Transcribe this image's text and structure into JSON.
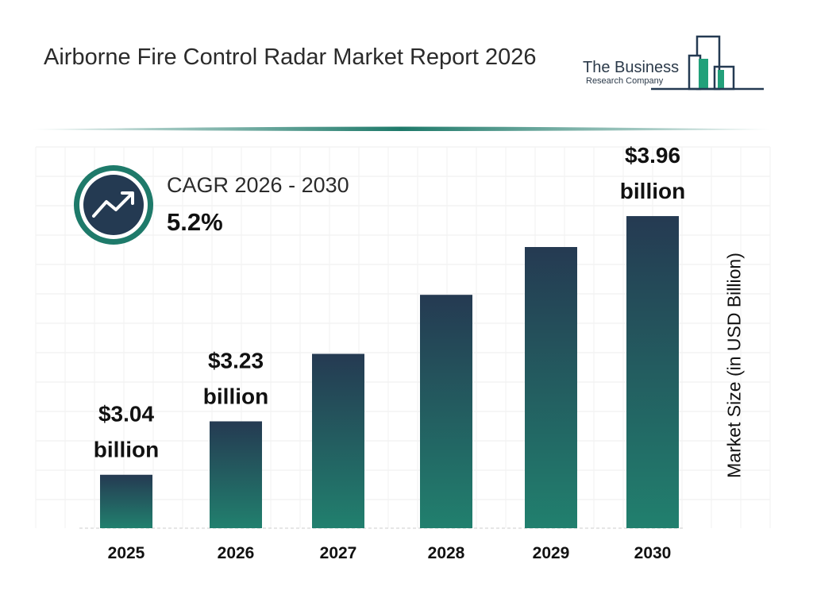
{
  "header": {
    "title": "Airborne Fire Control Radar Market Report 2026"
  },
  "logo": {
    "line1": "The Business",
    "line2": "Research Company"
  },
  "cagr": {
    "label": "CAGR 2026 - 2030",
    "value": "5.2%",
    "icon": "trending-up-icon"
  },
  "colors": {
    "bar_top": "#253a52",
    "bar_bottom": "#21806e",
    "ring": "#1e7a6a",
    "icon_bg": "#243a52"
  },
  "chart_data": {
    "type": "bar",
    "categories": [
      "2025",
      "2026",
      "2027",
      "2028",
      "2029",
      "2030"
    ],
    "values": [
      3.04,
      3.23,
      3.47,
      3.68,
      3.85,
      3.96
    ],
    "data_labels": [
      "$3.04 billion",
      "$3.23 billion",
      "",
      "",
      "",
      "$3.96 billion"
    ],
    "ylabel": "Market Size (in USD Billion)",
    "grid": true
  }
}
